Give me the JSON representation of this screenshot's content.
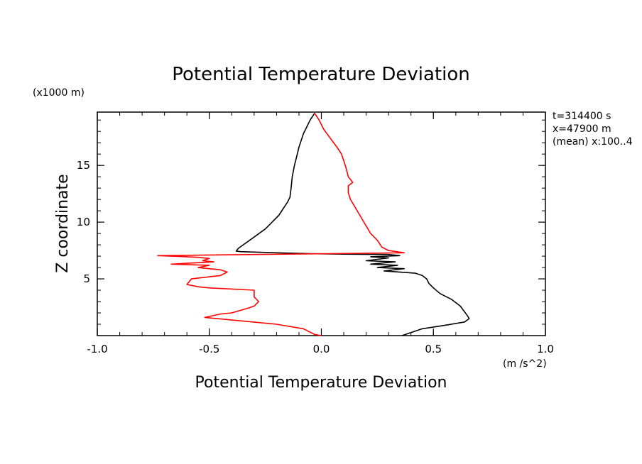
{
  "chart_data": {
    "type": "line",
    "title": "Potential Temperature Deviation",
    "xlabel": "Potential Temperature Deviation",
    "ylabel": "Z coordinate",
    "x_units": "(m /s^2)",
    "y_units": "(x1000 m)",
    "xlim": [
      -1.0,
      1.0
    ],
    "ylim": [
      0,
      19.7
    ],
    "xticks": [
      -1.0,
      -0.5,
      0.0,
      0.5,
      1.0
    ],
    "xtick_labels": [
      "-1.0",
      "-0.5",
      "0.0",
      "0.5",
      "1.0"
    ],
    "yticks": [
      5,
      10,
      15
    ],
    "ytick_labels": [
      "5",
      "10",
      "15"
    ],
    "annotations": [
      "t=314400 s",
      "x=47900 m",
      "(mean) x:100..4"
    ],
    "series": [
      {
        "name": "black",
        "color": "#000000",
        "points": [
          [
            -0.03,
            19.6
          ],
          [
            -0.05,
            19.0
          ],
          [
            -0.08,
            17.8
          ],
          [
            -0.1,
            16.6
          ],
          [
            -0.11,
            15.8
          ],
          [
            -0.12,
            15.0
          ],
          [
            -0.13,
            14.0
          ],
          [
            -0.135,
            13.0
          ],
          [
            -0.14,
            12.2
          ],
          [
            -0.15,
            11.8
          ],
          [
            -0.19,
            10.6
          ],
          [
            -0.25,
            9.4
          ],
          [
            -0.32,
            8.4
          ],
          [
            -0.37,
            7.7
          ],
          [
            -0.38,
            7.45
          ],
          [
            -0.36,
            7.4
          ],
          [
            -0.2,
            7.3
          ],
          [
            -0.05,
            7.22
          ],
          [
            0.1,
            7.18
          ],
          [
            0.3,
            7.15
          ],
          [
            0.35,
            7.05
          ],
          [
            0.22,
            6.95
          ],
          [
            0.3,
            6.85
          ],
          [
            0.2,
            6.6
          ],
          [
            0.33,
            6.5
          ],
          [
            0.22,
            6.3
          ],
          [
            0.34,
            6.2
          ],
          [
            0.25,
            6.0
          ],
          [
            0.37,
            5.9
          ],
          [
            0.28,
            5.7
          ],
          [
            0.42,
            5.5
          ],
          [
            0.45,
            5.3
          ],
          [
            0.47,
            5.0
          ],
          [
            0.48,
            4.6
          ],
          [
            0.5,
            4.2
          ],
          [
            0.53,
            3.7
          ],
          [
            0.58,
            3.2
          ],
          [
            0.62,
            2.6
          ],
          [
            0.65,
            1.8
          ],
          [
            0.66,
            1.5
          ],
          [
            0.64,
            1.2
          ],
          [
            0.55,
            0.9
          ],
          [
            0.45,
            0.6
          ],
          [
            0.36,
            0.0
          ]
        ]
      },
      {
        "name": "red",
        "color": "#ff0000",
        "points": [
          [
            -0.03,
            19.6
          ],
          [
            -0.01,
            19.0
          ],
          [
            0.01,
            18.2
          ],
          [
            0.04,
            17.4
          ],
          [
            0.07,
            16.6
          ],
          [
            0.09,
            16.0
          ],
          [
            0.1,
            15.4
          ],
          [
            0.11,
            14.8
          ],
          [
            0.12,
            14.0
          ],
          [
            0.14,
            13.5
          ],
          [
            0.12,
            13.2
          ],
          [
            0.12,
            12.6
          ],
          [
            0.13,
            12.0
          ],
          [
            0.16,
            11.0
          ],
          [
            0.19,
            10.0
          ],
          [
            0.22,
            9.0
          ],
          [
            0.25,
            8.4
          ],
          [
            0.27,
            7.8
          ],
          [
            0.3,
            7.5
          ],
          [
            0.37,
            7.3
          ],
          [
            -0.73,
            7.05
          ],
          [
            -0.6,
            6.95
          ],
          [
            -0.55,
            6.9
          ],
          [
            -0.5,
            6.8
          ],
          [
            -0.53,
            6.6
          ],
          [
            -0.48,
            6.5
          ],
          [
            -0.67,
            6.3
          ],
          [
            -0.5,
            6.2
          ],
          [
            -0.55,
            6.0
          ],
          [
            -0.45,
            5.8
          ],
          [
            -0.42,
            5.6
          ],
          [
            -0.45,
            5.3
          ],
          [
            -0.58,
            5.0
          ],
          [
            -0.6,
            4.5
          ],
          [
            -0.55,
            4.3
          ],
          [
            -0.5,
            4.2
          ],
          [
            -0.3,
            4.0
          ],
          [
            -0.3,
            3.4
          ],
          [
            -0.28,
            3.0
          ],
          [
            -0.3,
            2.6
          ],
          [
            -0.33,
            2.4
          ],
          [
            -0.4,
            2.0
          ],
          [
            -0.45,
            1.9
          ],
          [
            -0.52,
            1.6
          ],
          [
            -0.2,
            1.0
          ],
          [
            -0.08,
            0.6
          ],
          [
            -0.05,
            0.3
          ],
          [
            -0.03,
            0.1
          ],
          [
            0.0,
            0.0
          ]
        ]
      }
    ]
  }
}
